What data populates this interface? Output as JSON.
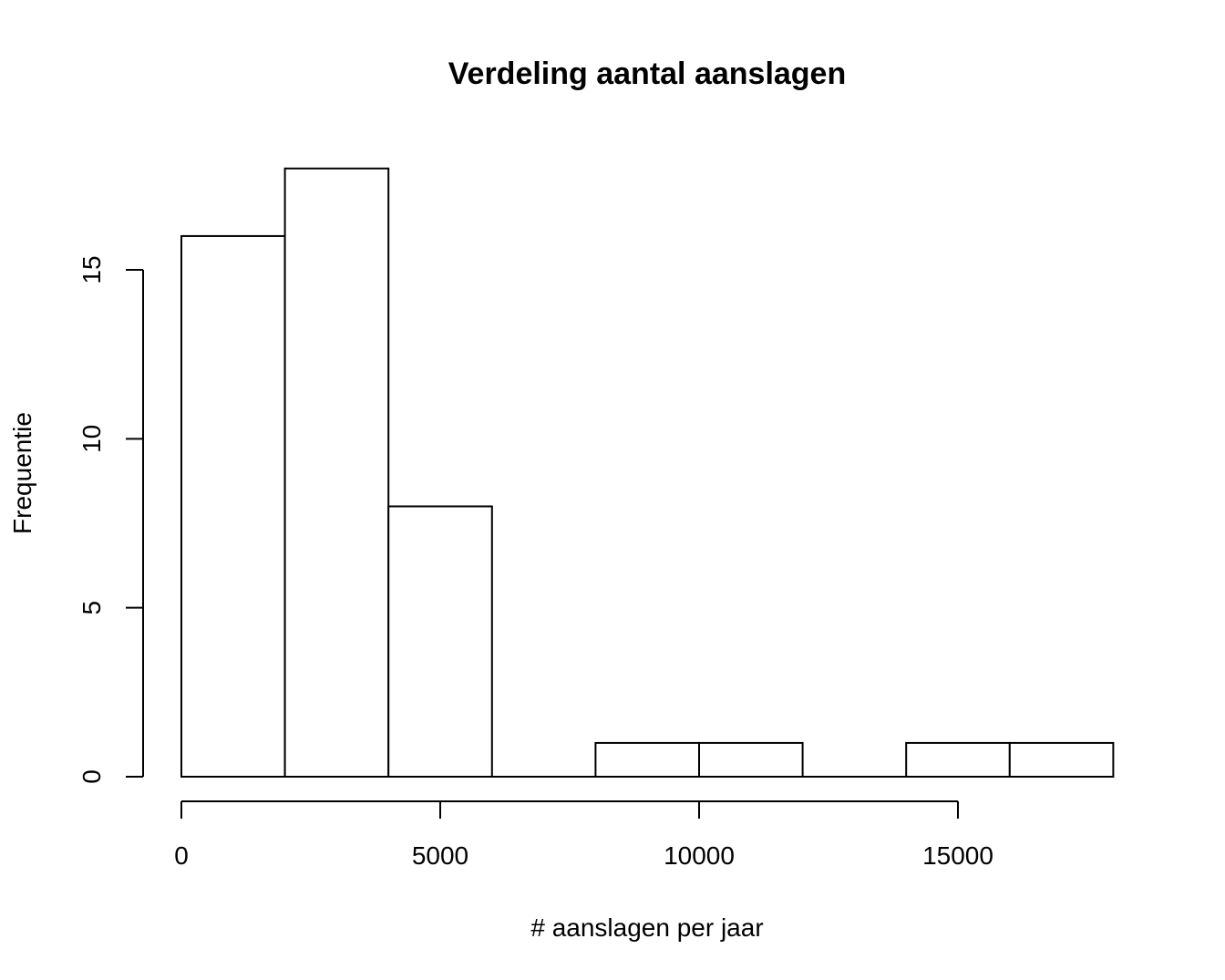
{
  "chart_data": {
    "type": "bar",
    "title": "Verdeling aantal aanslagen",
    "xlabel": "# aanslagen per jaar",
    "ylabel": "Frequentie",
    "bins": [
      {
        "from": 0,
        "to": 2000,
        "count": 16
      },
      {
        "from": 2000,
        "to": 4000,
        "count": 18
      },
      {
        "from": 4000,
        "to": 6000,
        "count": 8
      },
      {
        "from": 6000,
        "to": 8000,
        "count": 0
      },
      {
        "from": 8000,
        "to": 10000,
        "count": 1
      },
      {
        "from": 10000,
        "to": 12000,
        "count": 1
      },
      {
        "from": 12000,
        "to": 14000,
        "count": 0
      },
      {
        "from": 14000,
        "to": 16000,
        "count": 1
      },
      {
        "from": 16000,
        "to": 18000,
        "count": 1
      }
    ],
    "x_ticks": [
      0,
      5000,
      10000,
      15000
    ],
    "y_ticks": [
      0,
      5,
      10,
      15
    ],
    "xlim": [
      0,
      18000
    ],
    "ylim": [
      0,
      18
    ],
    "grid": false,
    "colors": {
      "bar_fill": "#ffffff",
      "bar_stroke": "#000000"
    }
  }
}
